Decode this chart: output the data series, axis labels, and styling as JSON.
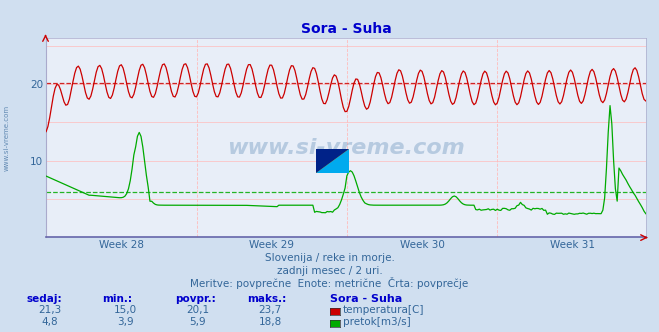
{
  "title": "Sora - Suha",
  "title_color": "#0000cc",
  "bg_color": "#d0dff0",
  "plot_bg_color": "#e8eef8",
  "temp_color": "#cc0000",
  "flow_color": "#00aa00",
  "x_labels": [
    "Week 28",
    "Week 29",
    "Week 30",
    "Week 31"
  ],
  "x_label_color": "#336699",
  "temp_avg": 20.1,
  "flow_avg": 5.9,
  "temp_min": 15.0,
  "temp_max": 23.7,
  "flow_min": 3.9,
  "flow_max": 18.8,
  "temp_now": 21.3,
  "flow_now": 4.8,
  "ylim": [
    0,
    26
  ],
  "n_points": 336,
  "subtitle1": "Slovenija / reke in morje.",
  "subtitle2": "zadnji mesec / 2 uri.",
  "subtitle3": "Meritve: povprečne  Enote: metrične  Črta: povprečje",
  "subtitle_color": "#336699",
  "legend_title": "Sora - Suha",
  "legend_color": "#0000cc",
  "watermark": "www.si-vreme.com"
}
